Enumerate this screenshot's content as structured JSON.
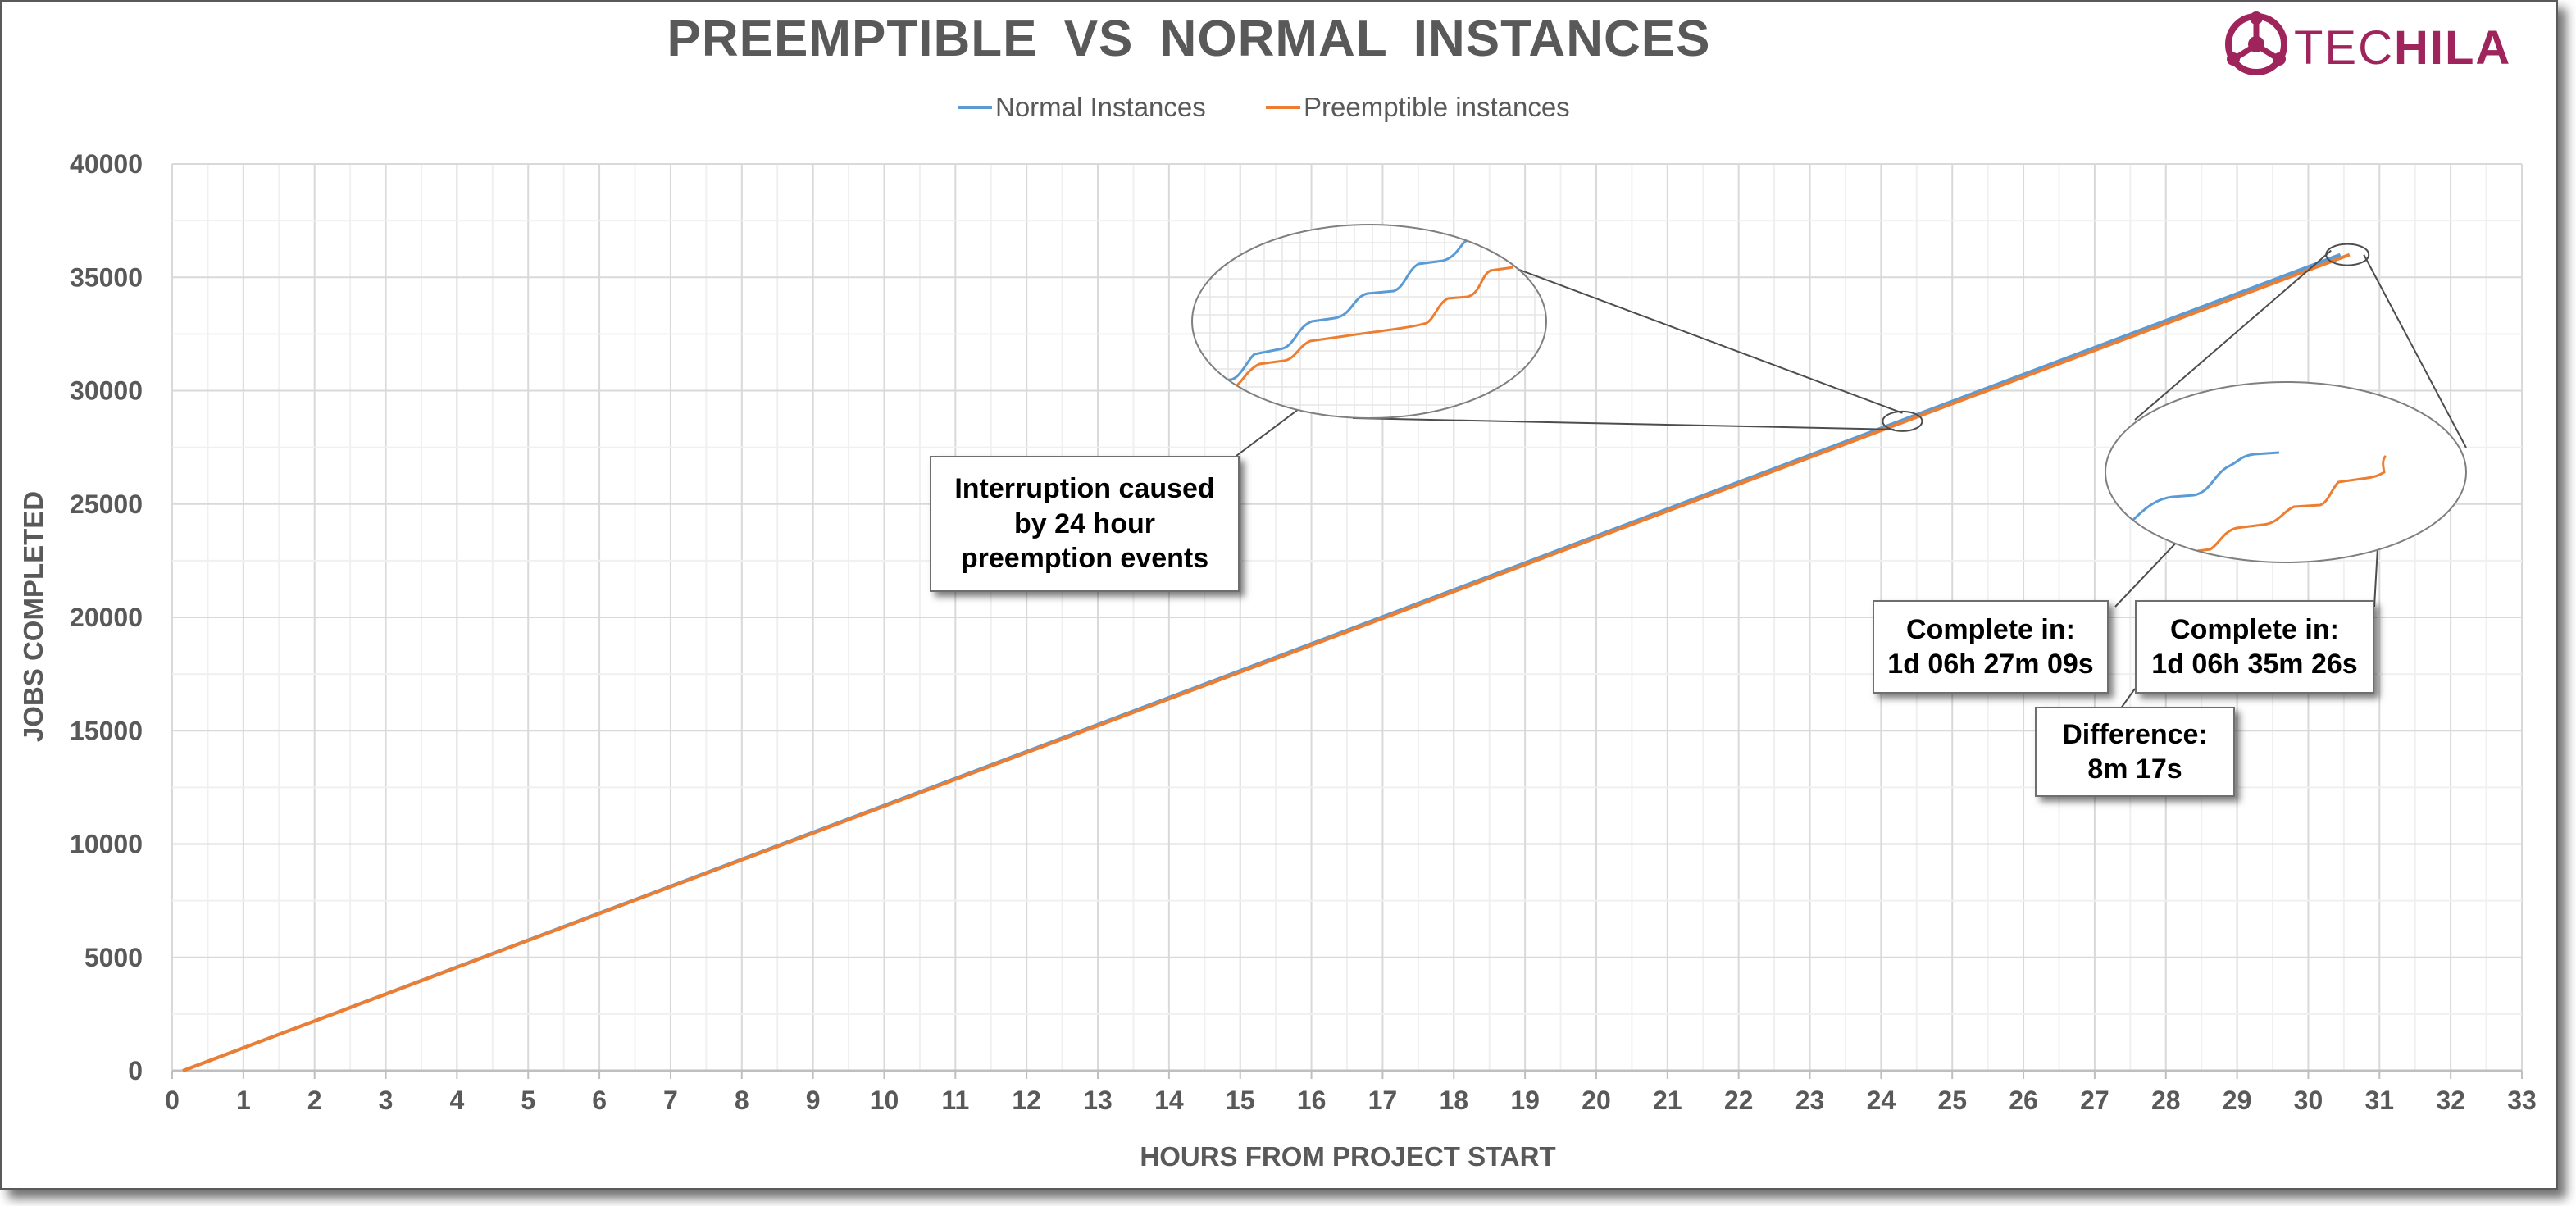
{
  "chart_data": {
    "type": "line",
    "title": "PREEMPTIBLE VS NORMAL INSTANCES",
    "xlabel": "HOURS FROM PROJECT START",
    "ylabel": "JOBS COMPLETED",
    "xlim": [
      0,
      33
    ],
    "ylim": [
      0,
      40000
    ],
    "x_ticks": [
      "0",
      "1",
      "2",
      "3",
      "4",
      "5",
      "6",
      "7",
      "8",
      "9",
      "10",
      "11",
      "12",
      "13",
      "14",
      "15",
      "16",
      "17",
      "18",
      "19",
      "20",
      "21",
      "22",
      "23",
      "24",
      "25",
      "26",
      "27",
      "28",
      "29",
      "30",
      "31",
      "32",
      "33"
    ],
    "y_ticks": [
      "0",
      "5000",
      "10000",
      "15000",
      "20000",
      "25000",
      "30000",
      "35000",
      "40000"
    ],
    "grid": true,
    "legend_position": "top-center",
    "series": [
      {
        "name": "Normal Instances",
        "color": "#5B9BD5",
        "x": [
          0.15,
          24.3,
          30.45
        ],
        "y": [
          0,
          28700,
          36000
        ]
      },
      {
        "name": "Preemptible instances",
        "color": "#ED7D31",
        "x": [
          0.15,
          24.3,
          30.58
        ],
        "y": [
          0,
          28600,
          36000
        ]
      }
    ],
    "annotations": [
      {
        "id": "interruption",
        "lines": [
          "Interruption caused",
          "by 24 hour",
          "preemption events"
        ]
      },
      {
        "id": "normal_complete",
        "lines": [
          "Complete in:",
          "1d 06h 27m 09s"
        ]
      },
      {
        "id": "preempt_complete",
        "lines": [
          "Complete in:",
          "1d 06h 35m 26s"
        ]
      },
      {
        "id": "difference",
        "lines": [
          "Difference:",
          "8m 17s"
        ]
      }
    ]
  },
  "logo": {
    "text_part1": "TEC",
    "text_part2": "HILA",
    "color": "#a0245c"
  }
}
